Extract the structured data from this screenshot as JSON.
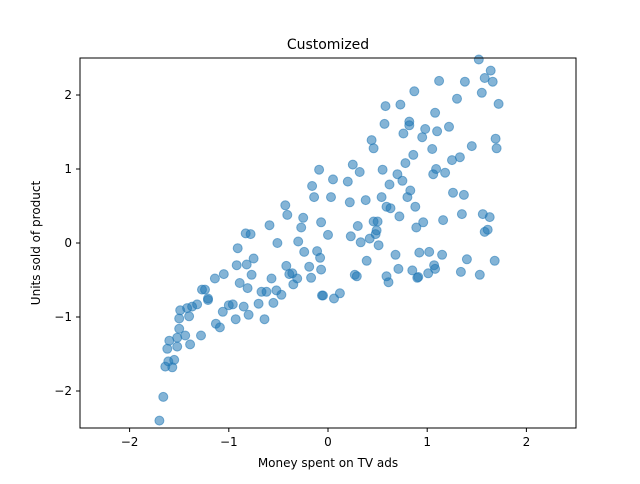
{
  "chart_data": {
    "type": "scatter",
    "title": "Customized",
    "xlabel": "Money spent on TV ads",
    "ylabel": "Units sold of product",
    "xlim": [
      -2.5,
      2.5
    ],
    "ylim": [
      -2.5,
      2.5
    ],
    "xticks": [
      -2,
      -1,
      0,
      1,
      2
    ],
    "xtick_labels": [
      "−2",
      "−1",
      "0",
      "1",
      "2"
    ],
    "yticks": [
      -2,
      -1,
      0,
      1,
      2
    ],
    "ytick_labels": [
      "−2",
      "−1",
      "0",
      "1",
      "2"
    ],
    "grid": false,
    "legend": null,
    "marker_color": "#1f77b4",
    "marker_alpha": 0.55,
    "points": [
      [
        -1.7,
        -2.4
      ],
      [
        -1.66,
        -2.08
      ],
      [
        -1.64,
        -1.67
      ],
      [
        -1.61,
        -1.6
      ],
      [
        -1.62,
        -1.43
      ],
      [
        -1.6,
        -1.32
      ],
      [
        -1.57,
        -1.68
      ],
      [
        -1.55,
        -1.58
      ],
      [
        -1.52,
        -1.28
      ],
      [
        -1.52,
        -1.4
      ],
      [
        -1.5,
        -1.16
      ],
      [
        -1.5,
        -1.02
      ],
      [
        -1.49,
        -0.91
      ],
      [
        -1.44,
        -1.25
      ],
      [
        -1.42,
        -0.88
      ],
      [
        -1.4,
        -0.99
      ],
      [
        -1.39,
        -1.37
      ],
      [
        -1.37,
        -0.86
      ],
      [
        -1.32,
        -0.83
      ],
      [
        -1.28,
        -1.25
      ],
      [
        -1.27,
        -0.63
      ],
      [
        -1.24,
        -0.63
      ],
      [
        -1.21,
        -0.77
      ],
      [
        -1.21,
        -0.75
      ],
      [
        -1.14,
        -0.48
      ],
      [
        -1.13,
        -1.09
      ],
      [
        -1.09,
        -1.14
      ],
      [
        -1.06,
        -0.93
      ],
      [
        -1.05,
        -0.42
      ],
      [
        -1.0,
        -0.84
      ],
      [
        -0.96,
        -0.83
      ],
      [
        -0.93,
        -1.03
      ],
      [
        -0.92,
        -0.3
      ],
      [
        -0.91,
        -0.07
      ],
      [
        -0.89,
        -0.54
      ],
      [
        -0.85,
        -0.86
      ],
      [
        -0.83,
        0.13
      ],
      [
        -0.82,
        -0.29
      ],
      [
        -0.81,
        -0.61
      ],
      [
        -0.8,
        -0.97
      ],
      [
        -0.78,
        0.12
      ],
      [
        -0.77,
        -0.43
      ],
      [
        -0.75,
        -0.21
      ],
      [
        -0.7,
        -0.82
      ],
      [
        -0.67,
        -0.66
      ],
      [
        -0.64,
        -1.03
      ],
      [
        -0.62,
        -0.66
      ],
      [
        -0.59,
        0.24
      ],
      [
        -0.57,
        -0.48
      ],
      [
        -0.55,
        -0.81
      ],
      [
        -0.52,
        -0.64
      ],
      [
        -0.51,
        0.0
      ],
      [
        -0.47,
        -0.7
      ],
      [
        -0.43,
        0.51
      ],
      [
        -0.42,
        -0.31
      ],
      [
        -0.41,
        0.38
      ],
      [
        -0.39,
        -0.42
      ],
      [
        -0.36,
        -0.41
      ],
      [
        -0.35,
        -0.56
      ],
      [
        -0.31,
        -0.48
      ],
      [
        -0.3,
        0.02
      ],
      [
        -0.27,
        0.21
      ],
      [
        -0.25,
        0.34
      ],
      [
        -0.24,
        -0.12
      ],
      [
        -0.19,
        -0.32
      ],
      [
        -0.17,
        -0.47
      ],
      [
        -0.16,
        0.77
      ],
      [
        -0.14,
        0.62
      ],
      [
        -0.11,
        -0.11
      ],
      [
        -0.09,
        0.99
      ],
      [
        -0.08,
        -0.2
      ],
      [
        -0.07,
        -0.36
      ],
      [
        -0.07,
        0.28
      ],
      [
        -0.06,
        -0.71
      ],
      [
        -0.05,
        -0.71
      ],
      [
        0.0,
        0.11
      ],
      [
        0.03,
        0.62
      ],
      [
        0.05,
        0.86
      ],
      [
        0.06,
        -0.75
      ],
      [
        0.12,
        -0.68
      ],
      [
        0.2,
        0.83
      ],
      [
        0.22,
        0.55
      ],
      [
        0.23,
        0.09
      ],
      [
        0.25,
        1.06
      ],
      [
        0.27,
        -0.43
      ],
      [
        0.29,
        -0.45
      ],
      [
        0.3,
        0.23
      ],
      [
        0.32,
        0.96
      ],
      [
        0.33,
        0.01
      ],
      [
        0.38,
        0.58
      ],
      [
        0.39,
        -0.24
      ],
      [
        0.42,
        0.06
      ],
      [
        0.44,
        1.39
      ],
      [
        0.46,
        1.28
      ],
      [
        0.46,
        0.29
      ],
      [
        0.48,
        0.12
      ],
      [
        0.49,
        0.17
      ],
      [
        0.5,
        0.29
      ],
      [
        0.51,
        -0.03
      ],
      [
        0.54,
        0.62
      ],
      [
        0.55,
        0.99
      ],
      [
        0.57,
        1.61
      ],
      [
        0.58,
        1.85
      ],
      [
        0.59,
        0.49
      ],
      [
        0.59,
        -0.45
      ],
      [
        0.61,
        -0.53
      ],
      [
        0.62,
        0.79
      ],
      [
        0.63,
        0.47
      ],
      [
        0.68,
        -0.16
      ],
      [
        0.7,
        0.93
      ],
      [
        0.71,
        -0.35
      ],
      [
        0.72,
        0.36
      ],
      [
        0.73,
        1.87
      ],
      [
        0.75,
        0.84
      ],
      [
        0.76,
        1.48
      ],
      [
        0.78,
        1.08
      ],
      [
        0.8,
        0.62
      ],
      [
        0.82,
        1.64
      ],
      [
        0.82,
        1.59
      ],
      [
        0.83,
        0.71
      ],
      [
        0.85,
        -0.37
      ],
      [
        0.86,
        1.19
      ],
      [
        0.87,
        2.05
      ],
      [
        0.88,
        0.49
      ],
      [
        0.89,
        0.21
      ],
      [
        0.9,
        -0.47
      ],
      [
        0.91,
        -0.46
      ],
      [
        0.92,
        -0.13
      ],
      [
        0.95,
        1.43
      ],
      [
        0.96,
        0.28
      ],
      [
        0.98,
        1.54
      ],
      [
        1.01,
        -0.41
      ],
      [
        1.02,
        -0.12
      ],
      [
        1.05,
        1.27
      ],
      [
        1.06,
        0.93
      ],
      [
        1.07,
        -0.3
      ],
      [
        1.08,
        -0.35
      ],
      [
        1.08,
        1.76
      ],
      [
        1.09,
        1.0
      ],
      [
        1.1,
        1.51
      ],
      [
        1.12,
        2.19
      ],
      [
        1.15,
        -0.16
      ],
      [
        1.16,
        0.31
      ],
      [
        1.18,
        0.95
      ],
      [
        1.22,
        1.57
      ],
      [
        1.25,
        1.12
      ],
      [
        1.26,
        0.68
      ],
      [
        1.3,
        1.95
      ],
      [
        1.33,
        1.16
      ],
      [
        1.34,
        -0.39
      ],
      [
        1.35,
        0.39
      ],
      [
        1.37,
        0.65
      ],
      [
        1.38,
        2.18
      ],
      [
        1.4,
        -0.22
      ],
      [
        1.45,
        1.31
      ],
      [
        1.52,
        2.48
      ],
      [
        1.53,
        -0.43
      ],
      [
        1.55,
        2.03
      ],
      [
        1.56,
        0.39
      ],
      [
        1.58,
        0.15
      ],
      [
        1.58,
        2.23
      ],
      [
        1.61,
        0.18
      ],
      [
        1.63,
        0.35
      ],
      [
        1.64,
        2.33
      ],
      [
        1.66,
        2.18
      ],
      [
        1.68,
        -0.24
      ],
      [
        1.69,
        1.41
      ],
      [
        1.7,
        1.28
      ],
      [
        1.72,
        1.88
      ]
    ]
  }
}
